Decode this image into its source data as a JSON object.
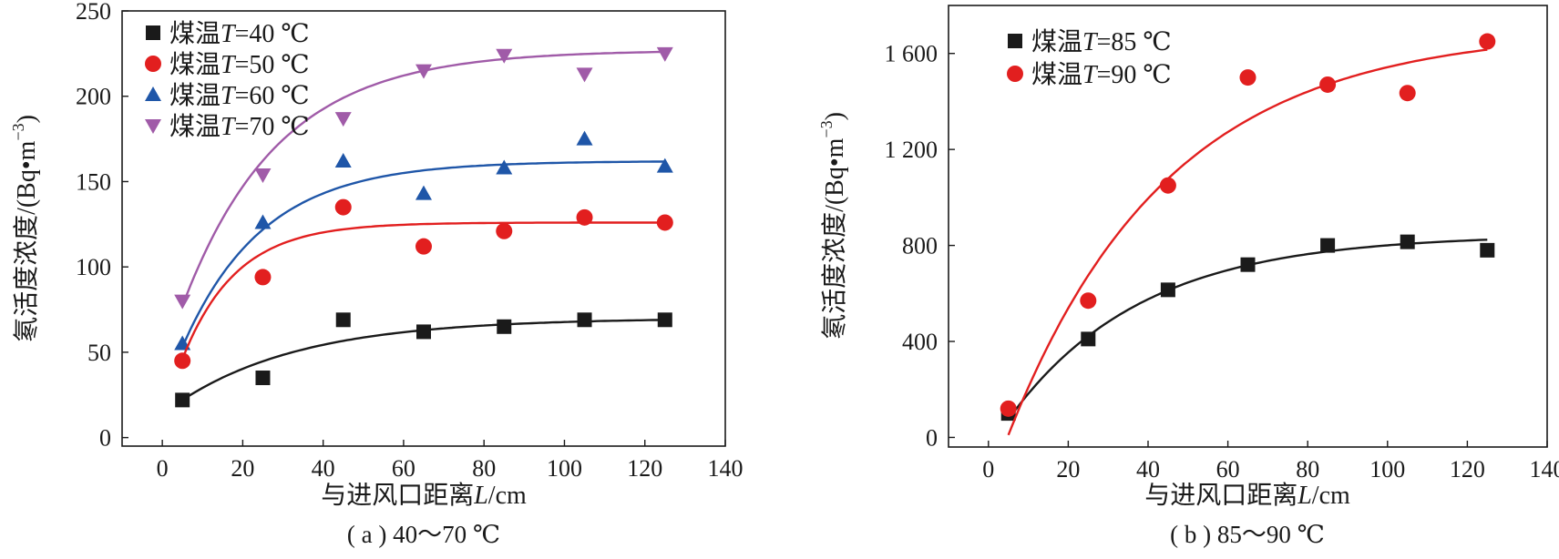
{
  "chart_data": [
    {
      "type": "scatter",
      "caption": "( a ) 40～70 ℃",
      "xlabel": {
        "prefix": "与进风口距离",
        "var": "L",
        "unit": "/cm"
      },
      "ylabel": {
        "prefix": "氡活度浓度/(Bq•m",
        "sup": "−3",
        "suffix": ")"
      },
      "xlim": [
        -10,
        140
      ],
      "ylim": [
        -5,
        250
      ],
      "xticks": [
        0,
        20,
        40,
        60,
        80,
        100,
        120,
        140
      ],
      "yticks": [
        0,
        50,
        100,
        150,
        200,
        250
      ],
      "ytick_labels": [
        "0",
        "50",
        "100",
        "150",
        "200",
        "250"
      ],
      "legend_position": "top-left",
      "series": [
        {
          "name": "煤温T=70 ℃",
          "legend_prefix": "煤温",
          "legend_var": "T",
          "legend_value": "=70 ℃",
          "marker": "triangle-down",
          "color": "#a05ba8",
          "x": [
            5,
            25,
            45,
            65,
            85,
            105,
            125
          ],
          "y": [
            80,
            154,
            187,
            215,
            224,
            213,
            225
          ],
          "fit": {
            "a": 227,
            "b": 150,
            "k": 0.042
          }
        },
        {
          "name": "煤温T=60 ℃",
          "legend_prefix": "煤温",
          "legend_var": "T",
          "legend_value": "=60 ℃",
          "marker": "triangle-up",
          "color": "#1f56a8",
          "x": [
            5,
            25,
            45,
            65,
            85,
            105,
            125
          ],
          "y": [
            55,
            126,
            162,
            143,
            158,
            175,
            159
          ],
          "fit": {
            "a": 162,
            "b": 109,
            "k": 0.05
          }
        },
        {
          "name": "煤温T=50 ℃",
          "legend_prefix": "煤温",
          "legend_var": "T",
          "legend_value": "=50 ℃",
          "marker": "circle",
          "color": "#e21f1f",
          "x": [
            5,
            25,
            45,
            65,
            85,
            105,
            125
          ],
          "y": [
            45,
            94,
            135,
            112,
            121,
            129,
            126
          ],
          "fit": {
            "a": 126,
            "b": 80,
            "k": 0.075
          }
        },
        {
          "name": "煤温T=40 ℃",
          "legend_prefix": "煤温",
          "legend_var": "T",
          "legend_value": "=40 ℃",
          "marker": "square",
          "color": "#1a1a1a",
          "x": [
            5,
            25,
            45,
            65,
            85,
            105,
            125
          ],
          "y": [
            22,
            35,
            69,
            62,
            65,
            69,
            69
          ],
          "fit": {
            "a": 70,
            "b": 48,
            "k": 0.032
          }
        }
      ],
      "legend_order": [
        3,
        2,
        1,
        0
      ]
    },
    {
      "type": "scatter",
      "caption": "( b ) 85～90 ℃",
      "xlabel": {
        "prefix": "与进风口距离",
        "var": "L",
        "unit": "/cm"
      },
      "ylabel": {
        "prefix": "氡活度浓度/(Bq•m",
        "sup": "−3",
        "suffix": ")"
      },
      "xlim": [
        -10,
        140
      ],
      "ylim": [
        -40,
        1800
      ],
      "xticks": [
        0,
        20,
        40,
        60,
        80,
        100,
        120,
        140
      ],
      "yticks": [
        0,
        400,
        800,
        1200,
        1600
      ],
      "ytick_labels": [
        "0",
        "400",
        "800",
        "1 200",
        "1 600"
      ],
      "legend_position": "top-left",
      "series": [
        {
          "name": "煤温T=85 ℃",
          "legend_prefix": "煤温",
          "legend_var": "T",
          "legend_value": "=85 ℃",
          "marker": "square",
          "color": "#1a1a1a",
          "x": [
            5,
            25,
            45,
            65,
            85,
            105,
            125
          ],
          "y": [
            100,
            410,
            615,
            720,
            800,
            815,
            780
          ],
          "fit": {
            "a": 845,
            "b": 770,
            "k": 0.03
          }
        },
        {
          "name": "煤温T=90 ℃",
          "legend_prefix": "煤温",
          "legend_var": "T",
          "legend_value": "=90 ℃",
          "marker": "circle",
          "color": "#e21f1f",
          "x": [
            5,
            25,
            45,
            65,
            85,
            105,
            125
          ],
          "y": [
            120,
            570,
            1050,
            1500,
            1470,
            1435,
            1650
          ],
          "fit": {
            "a": 1700,
            "b": 1690,
            "k": 0.025
          }
        }
      ],
      "legend_order": [
        0,
        1
      ]
    }
  ]
}
